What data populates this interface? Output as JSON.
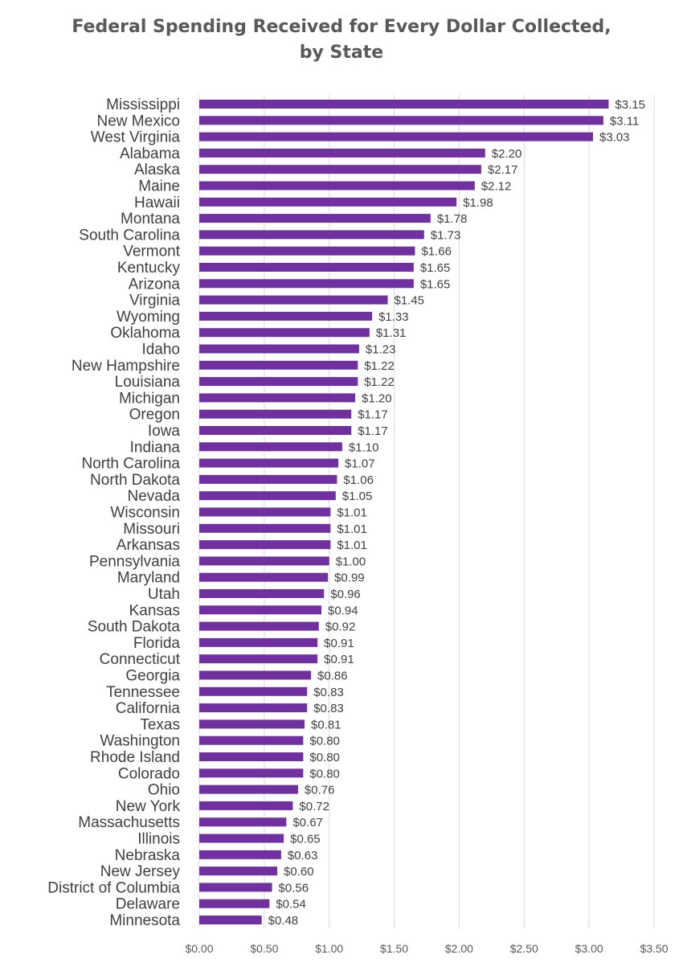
{
  "chart_data": {
    "type": "bar",
    "orientation": "horizontal",
    "title": [
      "Federal Spending Received for Every Dollar Collected,",
      "by State"
    ],
    "xlabel": "",
    "ylabel": "",
    "xlim": [
      0,
      3.5
    ],
    "x_ticks": [
      0,
      0.5,
      1.0,
      1.5,
      2.0,
      2.5,
      3.0,
      3.5
    ],
    "x_tick_labels": [
      "$0.00",
      "$0.50",
      "$1.00",
      "$1.50",
      "$2.00",
      "$2.50",
      "$3.00",
      "$3.50"
    ],
    "grid": "vertical",
    "bar_color": "#7030a0",
    "categories": [
      "Mississippi",
      "New Mexico",
      "West Virginia",
      "Alabama",
      "Alaska",
      "Maine",
      "Hawaii",
      "Montana",
      "South Carolina",
      "Vermont",
      "Kentucky",
      "Arizona",
      "Virginia",
      "Wyoming",
      "Oklahoma",
      "Idaho",
      "New Hampshire",
      "Louisiana",
      "Michigan",
      "Oregon",
      "Iowa",
      "Indiana",
      "North Carolina",
      "North Dakota",
      "Nevada",
      "Wisconsin",
      "Missouri",
      "Arkansas",
      "Pennsylvania",
      "Maryland",
      "Utah",
      "Kansas",
      "South Dakota",
      "Florida",
      "Connecticut",
      "Georgia",
      "Tennessee",
      "California",
      "Texas",
      "Washington",
      "Rhode Island",
      "Colorado",
      "Ohio",
      "New York",
      "Massachusetts",
      "Illinois",
      "Nebraska",
      "New Jersey",
      "District of Columbia",
      "Delaware",
      "Minnesota"
    ],
    "values": [
      3.15,
      3.11,
      3.03,
      2.2,
      2.17,
      2.12,
      1.98,
      1.78,
      1.73,
      1.66,
      1.65,
      1.65,
      1.45,
      1.33,
      1.31,
      1.23,
      1.22,
      1.22,
      1.2,
      1.17,
      1.17,
      1.1,
      1.07,
      1.06,
      1.05,
      1.01,
      1.01,
      1.01,
      1.0,
      0.99,
      0.96,
      0.94,
      0.92,
      0.91,
      0.91,
      0.86,
      0.83,
      0.83,
      0.81,
      0.8,
      0.8,
      0.8,
      0.76,
      0.72,
      0.67,
      0.65,
      0.63,
      0.6,
      0.56,
      0.54,
      0.48
    ],
    "value_labels": [
      "$3.15",
      "$3.11",
      "$3.03",
      "$2.20",
      "$2.17",
      "$2.12",
      "$1.98",
      "$1.78",
      "$1.73",
      "$1.66",
      "$1.65",
      "$1.65",
      "$1.45",
      "$1.33",
      "$1.31",
      "$1.23",
      "$1.22",
      "$1.22",
      "$1.20",
      "$1.17",
      "$1.17",
      "$1.10",
      "$1.07",
      "$1.06",
      "$1.05",
      "$1.01",
      "$1.01",
      "$1.01",
      "$1.00",
      "$0.99",
      "$0.96",
      "$0.94",
      "$0.92",
      "$0.91",
      "$0.91",
      "$0.86",
      "$0.83",
      "$0.83",
      "$0.81",
      "$0.80",
      "$0.80",
      "$0.80",
      "$0.76",
      "$0.72",
      "$0.67",
      "$0.65",
      "$0.63",
      "$0.60",
      "$0.56",
      "$0.54",
      "$0.48"
    ]
  }
}
